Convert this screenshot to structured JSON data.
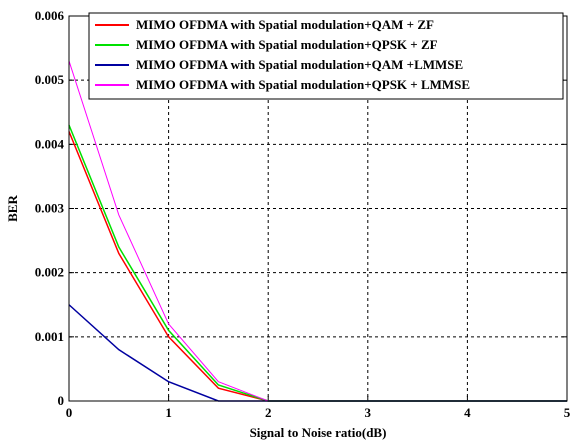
{
  "chart_data": {
    "type": "line",
    "xlabel": "Signal to Noise ratio(dB)",
    "ylabel": "BER",
    "xlim": [
      0,
      5
    ],
    "ylim": [
      0,
      0.006
    ],
    "xticks": [
      "0",
      "1",
      "2",
      "3",
      "4",
      "5"
    ],
    "yticks": [
      "0",
      "0.001",
      "0.002",
      "0.003",
      "0.004",
      "0.005",
      "0.006"
    ],
    "grid": true,
    "legend_position": "top-right",
    "x": [
      0,
      0.5,
      1,
      1.5,
      2,
      2.5,
      3,
      3.5,
      4,
      4.5,
      5
    ],
    "series": [
      {
        "name": "MIMO OFDMA with Spatial modulation+QAM + ZF",
        "color": "#ff0000",
        "values": [
          0.0042,
          0.0023,
          0.001,
          0.0002,
          0,
          0,
          0,
          0,
          0,
          0,
          0
        ]
      },
      {
        "name": "MIMO OFDMA with Spatial modulation+QPSK + ZF",
        "color": "#00e000",
        "values": [
          0.0043,
          0.0024,
          0.0011,
          0.00025,
          0,
          0,
          0,
          0,
          0,
          0,
          0
        ]
      },
      {
        "name": "MIMO OFDMA with Spatial modulation+QAM +LMMSE",
        "color": "#0000a0",
        "values": [
          0.0015,
          0.0008,
          0.0003,
          0,
          0,
          0,
          0,
          0,
          0,
          0,
          0
        ]
      },
      {
        "name": "MIMO OFDMA with Spatial modulation+QPSK + LMMSE",
        "color": "#ff00ff",
        "values": [
          0.0053,
          0.0029,
          0.0012,
          0.0003,
          0,
          0,
          0,
          0,
          0,
          0,
          0
        ]
      }
    ]
  }
}
